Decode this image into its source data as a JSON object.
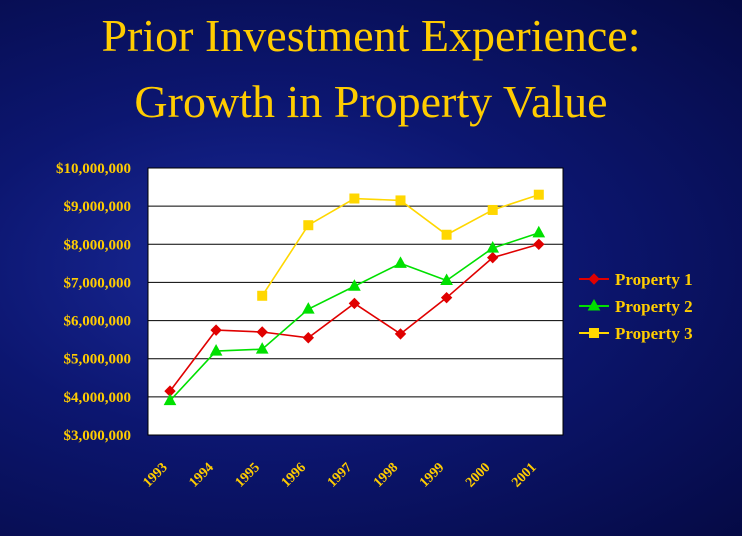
{
  "slide": {
    "title_line1": "Prior Investment Experience:",
    "title_line2": "Growth in Property Value"
  },
  "colors": {
    "background": "#0c1670",
    "title": "#ffcc00",
    "plot_bg": "#ffffff",
    "legend_bg": "#ffffff",
    "property1": "#e00000",
    "property2": "#00e000",
    "property3": "#ffd700"
  },
  "chart_data": {
    "type": "line",
    "title": "",
    "xlabel": "",
    "ylabel": "",
    "categories": [
      "1993",
      "1994",
      "1995",
      "1996",
      "1997",
      "1998",
      "1999",
      "2000",
      "2001"
    ],
    "ylim": [
      3000000,
      10000000
    ],
    "yticks": [
      3000000,
      4000000,
      5000000,
      6000000,
      7000000,
      8000000,
      9000000,
      10000000
    ],
    "ytick_labels": [
      "$3,000,000",
      "$4,000,000",
      "$5,000,000",
      "$6,000,000",
      "$7,000,000",
      "$8,000,000",
      "$9,000,000",
      "$10,000,000"
    ],
    "grid": true,
    "legend_position": "right",
    "series": [
      {
        "name": "Property 1",
        "color": "#e00000",
        "marker": "diamond",
        "x": [
          1993,
          1994,
          1995,
          1996,
          1997,
          1998,
          1999,
          2000,
          2001
        ],
        "values": [
          4150000,
          5750000,
          5700000,
          5550000,
          6450000,
          5650000,
          6600000,
          7650000,
          8000000
        ]
      },
      {
        "name": "Property 2",
        "color": "#00e000",
        "marker": "triangle",
        "x": [
          1993,
          1994,
          1995,
          1996,
          1997,
          1998,
          1999,
          2000,
          2001
        ],
        "values": [
          3900000,
          5200000,
          5250000,
          6300000,
          6900000,
          7500000,
          7050000,
          7900000,
          8300000
        ]
      },
      {
        "name": "Property 3",
        "color": "#ffd700",
        "marker": "square",
        "x": [
          1995,
          1996,
          1997,
          1998,
          1999,
          2000,
          2001
        ],
        "values": [
          6650000,
          8500000,
          9200000,
          9150000,
          8250000,
          8900000,
          9300000
        ]
      }
    ]
  }
}
